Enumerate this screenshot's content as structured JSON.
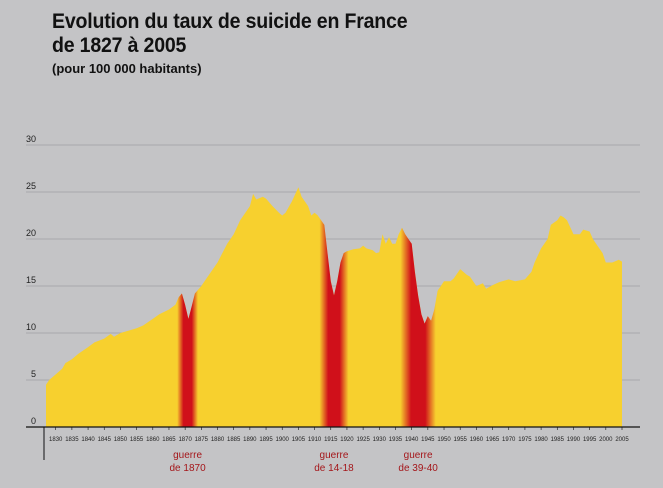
{
  "chart_data": {
    "type": "area",
    "title_line1": "Evolution du taux de suicide en France",
    "title_line2": "de 1827 à 2005",
    "subtitle": "(pour 100 000 habitants)",
    "ylim": [
      0,
      30
    ],
    "yticks": [
      "0",
      "5",
      "10",
      "15",
      "20",
      "25",
      "30"
    ],
    "xlim": [
      1827,
      2005
    ],
    "xticks": [
      "1830",
      "1835",
      "1840",
      "1845",
      "1850",
      "1855",
      "1860",
      "1865",
      "1870",
      "1875",
      "1880",
      "1885",
      "1890",
      "1895",
      "1900",
      "1905",
      "1910",
      "1915",
      "1920",
      "1925",
      "1930",
      "1935",
      "1940",
      "1945",
      "1950",
      "1955",
      "1960",
      "1965",
      "1970",
      "1975",
      "1980",
      "1985",
      "1990",
      "1995",
      "2000",
      "2005"
    ],
    "grid": true,
    "series": [
      {
        "x": [
          1827,
          1828,
          1830,
          1832,
          1833,
          1835,
          1837,
          1840,
          1842,
          1845,
          1847,
          1848,
          1850,
          1852,
          1855,
          1857,
          1860,
          1862,
          1865,
          1867,
          1868,
          1869,
          1870,
          1871,
          1872,
          1873,
          1875,
          1878,
          1880,
          1883,
          1885,
          1887,
          1890,
          1891,
          1892,
          1894,
          1895,
          1897,
          1899,
          1900,
          1901,
          1903,
          1905,
          1906,
          1908,
          1909,
          1910,
          1911,
          1912,
          1913,
          1914,
          1915,
          1916,
          1917,
          1918,
          1919,
          1920,
          1922,
          1924,
          1925,
          1926,
          1928,
          1929,
          1930,
          1931,
          1932,
          1933,
          1934,
          1935,
          1936,
          1937,
          1938,
          1939,
          1940,
          1941,
          1942,
          1943,
          1944,
          1945,
          1946,
          1947,
          1948,
          1950,
          1952,
          1953,
          1955,
          1957,
          1958,
          1960,
          1962,
          1963,
          1965,
          1967,
          1968,
          1970,
          1972,
          1975,
          1977,
          1978,
          1980,
          1982,
          1983,
          1985,
          1986,
          1987,
          1988,
          1990,
          1992,
          1993,
          1995,
          1996,
          1997,
          1998,
          1999,
          2000,
          2002,
          2004,
          2005
        ],
        "y": [
          4.5,
          5,
          5.6,
          6.2,
          6.8,
          7.2,
          7.8,
          8.5,
          9,
          9.4,
          9.9,
          9.6,
          10,
          10.2,
          10.5,
          10.8,
          11.5,
          12,
          12.5,
          13,
          13.8,
          14.2,
          13,
          11.5,
          12.8,
          14.2,
          15,
          16.5,
          17.5,
          19.5,
          20.5,
          22,
          23.5,
          24.8,
          24.2,
          24.5,
          24.3,
          23.5,
          22.8,
          22.5,
          22.8,
          24,
          25.5,
          24.5,
          23.5,
          22.5,
          22.8,
          22.5,
          22,
          21.5,
          18.5,
          15.5,
          14,
          15.5,
          17.5,
          18.5,
          18.7,
          18.9,
          19,
          19.3,
          19,
          18.8,
          18.5,
          18.6,
          20.5,
          19.5,
          20.2,
          19.5,
          19.5,
          20.5,
          21.2,
          20.5,
          20,
          19.5,
          16.5,
          14,
          12,
          11,
          11.8,
          11.3,
          12.5,
          14.5,
          15.5,
          15.5,
          15.8,
          16.8,
          16.2,
          16,
          15,
          15.3,
          14.7,
          15.1,
          15.4,
          15.5,
          15.7,
          15.5,
          15.7,
          16.5,
          17.5,
          19,
          20,
          21.5,
          22,
          22.5,
          22.3,
          22,
          20.5,
          20.5,
          21,
          20.8,
          20,
          19.5,
          19,
          18.5,
          17.5,
          17.5,
          17.8,
          17.6
        ]
      }
    ],
    "annotations": [
      {
        "line1": "guerre",
        "line2": "de 1870",
        "start": 1870,
        "end": 1871.5
      },
      {
        "line1": "guerre",
        "line2": "de 14-18",
        "start": 1914,
        "end": 1918
      },
      {
        "line1": "guerre",
        "line2": "de 39-40",
        "start": 1939,
        "end": 1945
      }
    ],
    "colors": {
      "area": "#f7d02e",
      "war": "#d0101a",
      "background": "#c4c4c6",
      "text": "#111111"
    }
  }
}
